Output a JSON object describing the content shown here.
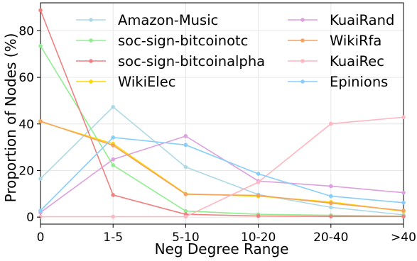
{
  "chart_data": {
    "type": "line",
    "xlabel": "Neg Degree Range",
    "ylabel": "Proportion of Nodes (%)",
    "categories": [
      "0",
      "1-5",
      "5-10",
      "10-20",
      "20-40",
      ">40"
    ],
    "yticks": [
      "0",
      "20",
      "40",
      "60",
      "80"
    ],
    "ylim": [
      -3,
      92
    ],
    "grid": true,
    "legend": "top, two columns",
    "series": [
      {
        "name": "Amazon-Music",
        "color": "#add8e6",
        "values": [
          16.5,
          47.3,
          21.5,
          9.7,
          4.2,
          1.0
        ]
      },
      {
        "name": "soc-sign-bitcoinotc",
        "color": "#90ee90",
        "values": [
          73.5,
          22.3,
          2.6,
          1.2,
          0.8,
          0.4
        ]
      },
      {
        "name": "soc-sign-bitcoinalpha",
        "color": "#f08080",
        "values": [
          88.8,
          9.5,
          1.2,
          0.5,
          0.3,
          0.3
        ]
      },
      {
        "name": "WikiElec",
        "color": "#ffd700",
        "values": [
          41.0,
          31.5,
          10.0,
          9.0,
          6.5,
          2.5
        ]
      },
      {
        "name": "KuaiRand",
        "color": "#dda0dd",
        "values": [
          2.0,
          24.8,
          34.8,
          15.5,
          13.3,
          10.5
        ]
      },
      {
        "name": "WikiRfa",
        "color": "#f4a460",
        "values": [
          41.2,
          30.8,
          9.8,
          9.3,
          6.0,
          2.8
        ]
      },
      {
        "name": "KuaiRec",
        "color": "#ffb6c1",
        "values": [
          0.2,
          0.2,
          0.2,
          15.0,
          40.1,
          42.9
        ]
      },
      {
        "name": "Epinions",
        "color": "#87cefa",
        "values": [
          2.8,
          34.2,
          31.0,
          18.6,
          9.0,
          6.2
        ]
      }
    ]
  }
}
